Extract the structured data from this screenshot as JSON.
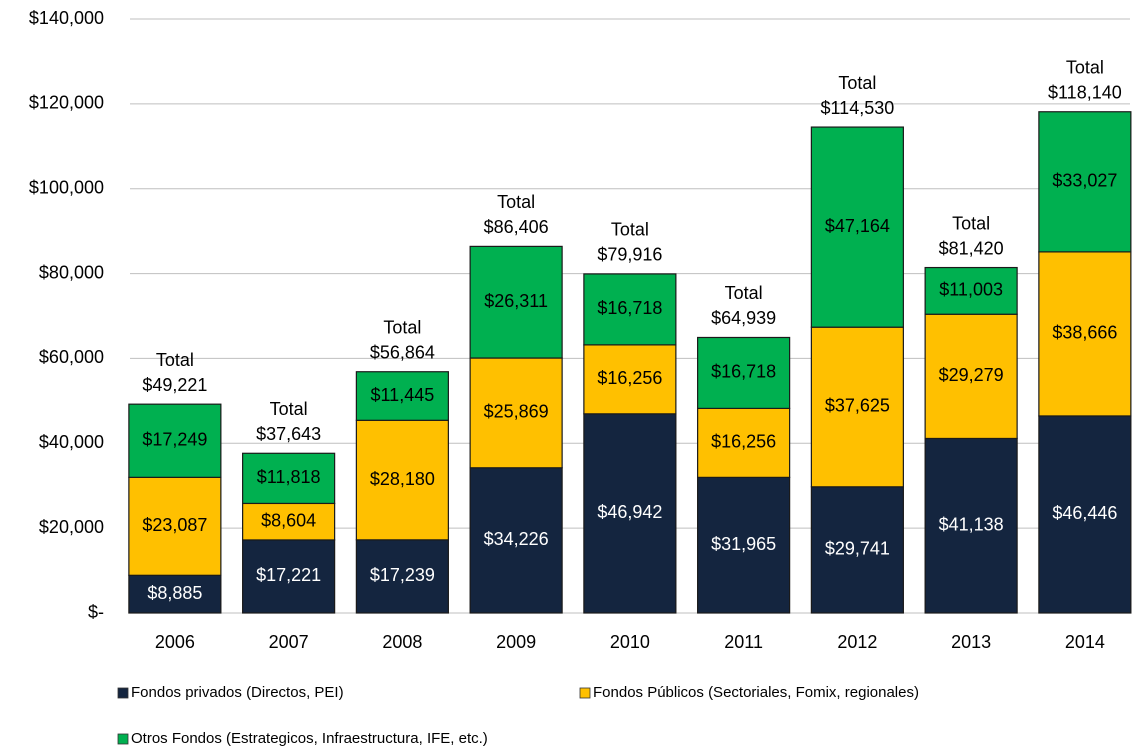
{
  "chart_data": {
    "type": "stacked_bar",
    "categories": [
      "2006",
      "2007",
      "2008",
      "2009",
      "2010",
      "2011",
      "2012",
      "2013",
      "2014"
    ],
    "series": [
      {
        "name": "Fondos privados (Directos, PEI)",
        "color": "#14253f",
        "values": [
          8885,
          17221,
          17239,
          34226,
          46942,
          31965,
          29741,
          41138,
          46446
        ],
        "value_labels": [
          "$8,885",
          "$17,221",
          "$17,239",
          "$34,226",
          "$46,942",
          "$31,965",
          "$29,741",
          "$41,138",
          "$46,446"
        ]
      },
      {
        "name": "Fondos Públicos (Sectoriales, Fomix, regionales)",
        "color": "#ffc000",
        "values": [
          23087,
          8604,
          28180,
          25869,
          16256,
          16256,
          37625,
          29279,
          38666
        ],
        "value_labels": [
          "$23,087",
          "$8,604",
          "$28,180",
          "$25,869",
          "$16,256",
          "$16,256",
          "$37,625",
          "$29,279",
          "$38,666"
        ]
      },
      {
        "name": "Otros Fondos (Estrategicos, Infraestructura, IFE, etc.)",
        "color": "#00b050",
        "values": [
          17249,
          11818,
          11445,
          26311,
          16718,
          16718,
          47164,
          11003,
          33027
        ],
        "value_labels": [
          "$17,249",
          "$11,818",
          "$11,445",
          "$26,311",
          "$16,718",
          "$16,718",
          "$47,164",
          "$11,003",
          "$33,027"
        ]
      }
    ],
    "total_prefix": "Total",
    "totals": [
      49221,
      37643,
      56864,
      86406,
      79916,
      64939,
      114530,
      81420,
      118140
    ],
    "total_labels": [
      "$49,221",
      "$37,643",
      "$56,864",
      "$86,406",
      "$79,916",
      "$64,939",
      "$114,530",
      "$81,420",
      "$118,140"
    ],
    "ylim": [
      0,
      140000
    ],
    "yticks": [
      {
        "value": 0,
        "label": "$-"
      },
      {
        "value": 20000,
        "label": "$20,000"
      },
      {
        "value": 40000,
        "label": "$40,000"
      },
      {
        "value": 60000,
        "label": "$60,000"
      },
      {
        "value": 80000,
        "label": "$80,000"
      },
      {
        "value": 100000,
        "label": "$100,000"
      },
      {
        "value": 120000,
        "label": "$120,000"
      },
      {
        "value": 140000,
        "label": "$140,000"
      }
    ],
    "grid": true,
    "legend": "bottom"
  }
}
